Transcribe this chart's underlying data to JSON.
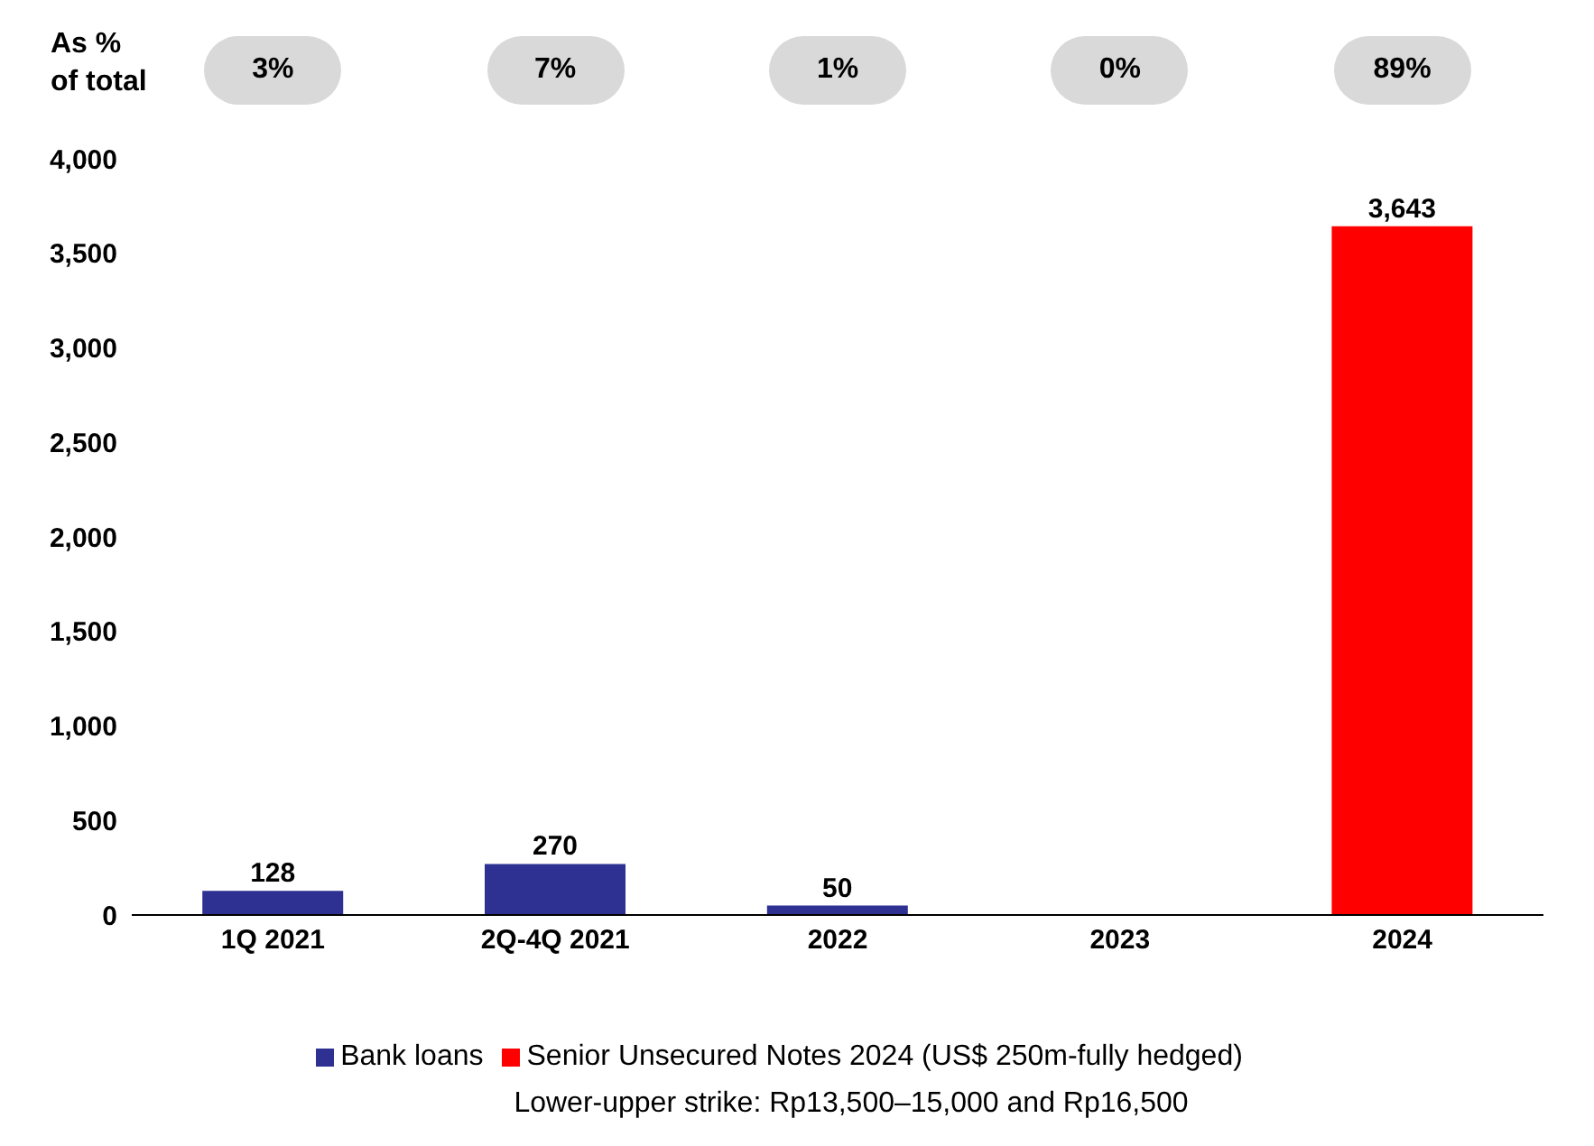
{
  "chart_data": {
    "type": "bar",
    "stacked": true,
    "categories": [
      "1Q 2021",
      "2Q-4Q 2021",
      "2022",
      "2023",
      "2024"
    ],
    "series": [
      {
        "name": "Bank loans",
        "color": "#2e3192",
        "values": [
          128,
          270,
          50,
          null,
          null
        ],
        "value_labels": [
          "128",
          "270",
          "50",
          null,
          null
        ]
      },
      {
        "name": "Senior Unsecured Notes 2024 (US$ 250m-fully hedged)",
        "color": "#ff0000",
        "values": [
          null,
          null,
          null,
          null,
          3643
        ],
        "value_labels": [
          null,
          null,
          null,
          null,
          "3,643"
        ]
      }
    ],
    "ylim": [
      0,
      4000
    ],
    "yticks": [
      0,
      500,
      {
        "value": 1000,
        "label": "1,000"
      },
      {
        "value": 1500,
        "label": "1,500"
      },
      {
        "value": 2000,
        "label": "2,000"
      },
      {
        "value": 2500,
        "label": "2,500"
      },
      {
        "value": 3000,
        "label": "3,000"
      },
      {
        "value": 3500,
        "label": "3,500"
      },
      {
        "value": 4000,
        "label": "4,000"
      }
    ],
    "grid": false,
    "legend": "bottom",
    "annotations": [
      "As %\nof total",
      "3%",
      "7%",
      "1%",
      "0%",
      "89%",
      "Lower-upper strike: Rp13,500–15,000 and Rp16,500"
    ]
  }
}
